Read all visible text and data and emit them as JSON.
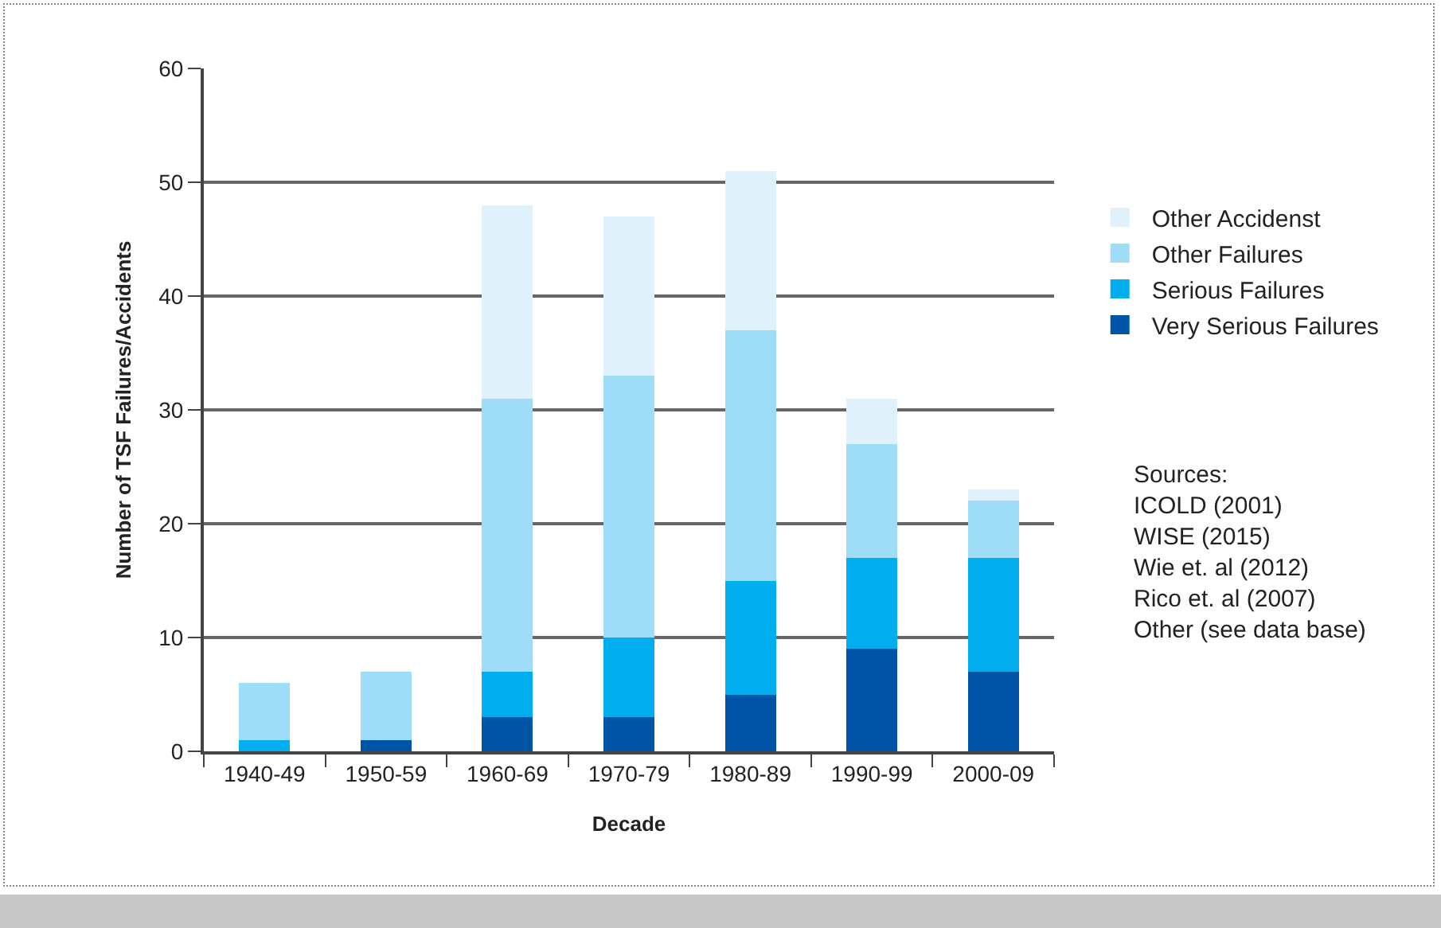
{
  "chart_data": {
    "type": "bar",
    "stacked": true,
    "xlabel": "Decade",
    "ylabel": "Number of TSF Failures/Accidents",
    "categories": [
      "1940-49",
      "1950-59",
      "1960-69",
      "1970-79",
      "1980-89",
      "1990-99",
      "2000-09"
    ],
    "series": [
      {
        "name": "Very Serious Failures",
        "color": "#0054a6",
        "values": [
          0,
          1,
          3,
          3,
          5,
          9,
          7
        ]
      },
      {
        "name": "Serious Failures",
        "color": "#00adee",
        "values": [
          1,
          0,
          4,
          7,
          10,
          8,
          10
        ]
      },
      {
        "name": "Other Failures",
        "color": "#9fdcf7",
        "values": [
          5,
          6,
          24,
          23,
          22,
          10,
          5
        ]
      },
      {
        "name": "Other Accidenst",
        "color": "#dff1fb",
        "values": [
          0,
          0,
          17,
          14,
          14,
          4,
          1
        ]
      }
    ],
    "ylim": [
      0,
      60
    ],
    "yticks": [
      0,
      10,
      20,
      30,
      40,
      50,
      60
    ],
    "grid": "y",
    "legend": "right",
    "annotations": [
      "Sources:\nICOLD (2001)\nWISE (2015)\nWie et. al (2012)\nRico et. al (2007)\nOther (see data base)"
    ]
  }
}
